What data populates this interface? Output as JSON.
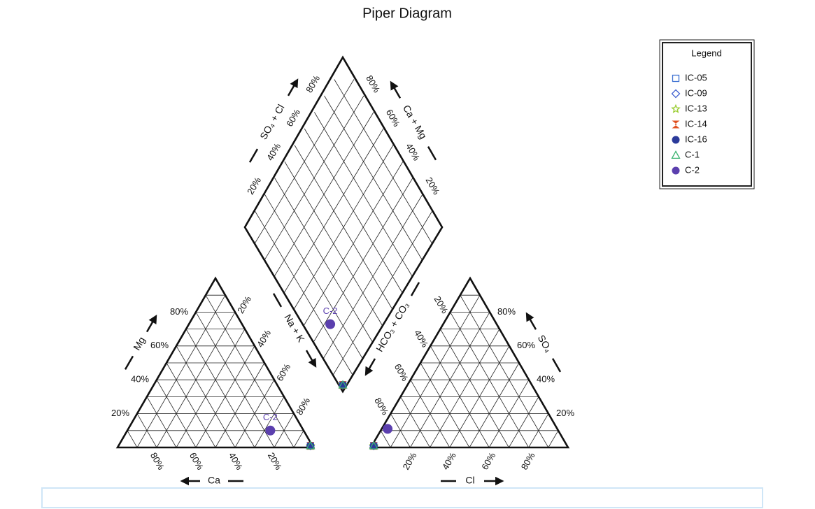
{
  "chart_data": {
    "type": "piper",
    "title": "Piper Diagram",
    "legend_title": "Legend",
    "legend": "top-right",
    "grid_divisions": 10,
    "ticks": [
      {
        "value": 20,
        "label": "20%"
      },
      {
        "value": 40,
        "label": "40%"
      },
      {
        "value": 60,
        "label": "60%"
      },
      {
        "value": 80,
        "label": "80%"
      }
    ],
    "axis_labels": {
      "ca": "Ca",
      "mg": "Mg",
      "nak": "Na + K",
      "cl": "Cl",
      "so4": "SO₄",
      "hco3": "HCO₃ + CO₃",
      "so4cl": "SO₄ + Cl",
      "camg": "Ca + Mg"
    },
    "series": [
      {
        "name": "IC-05",
        "color": "#3b6fd1",
        "marker": "square",
        "cations": [
          1,
          1,
          98
        ],
        "anions": [
          1,
          1,
          98
        ]
      },
      {
        "name": "IC-09",
        "color": "#4060d0",
        "marker": "diamond",
        "cations": [
          1,
          1,
          98
        ],
        "anions": [
          1,
          1,
          98
        ]
      },
      {
        "name": "IC-13",
        "color": "#9acd32",
        "marker": "star",
        "cations": [
          1,
          1,
          98
        ],
        "anions": [
          1,
          1,
          98
        ]
      },
      {
        "name": "IC-14",
        "color": "#e05020",
        "marker": "hourglass",
        "cations": [
          1,
          1,
          98
        ],
        "anions": [
          1,
          1,
          98
        ]
      },
      {
        "name": "IC-16",
        "color": "#2b3a9a",
        "marker": "circle",
        "cations": [
          1,
          1,
          98
        ],
        "anions": [
          1,
          1,
          98
        ]
      },
      {
        "name": "C-1",
        "color": "#3cb371",
        "marker": "triangle",
        "cations": [
          1,
          1,
          98
        ],
        "anions": [
          1,
          1,
          98
        ]
      },
      {
        "name": "C-2",
        "color": "#5b3fae",
        "marker": "circle",
        "show_label": true,
        "cations": [
          17,
          10,
          73
        ],
        "anions": [
          3,
          11,
          86
        ]
      }
    ]
  }
}
